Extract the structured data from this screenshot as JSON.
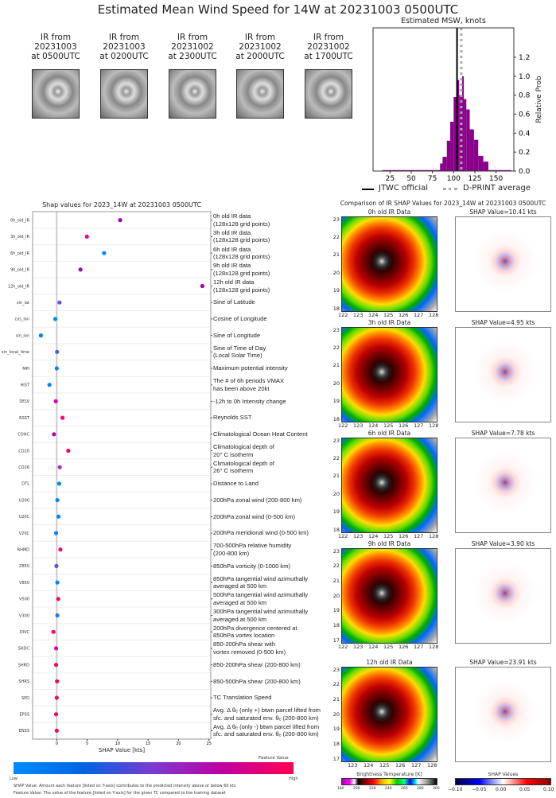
{
  "title": "Estimated Mean Wind Speed for 14W at 20231003 0500UTC",
  "ir_thumbnails": [
    {
      "label": "IR from\n20231003\nat 0500UTC"
    },
    {
      "label": "IR from\n20231003\nat 0200UTC"
    },
    {
      "label": "IR from\n20231002\nat 2300UTC"
    },
    {
      "label": "IR from\n20231002\nat 2000UTC"
    },
    {
      "label": "IR from\n20231002\nat 1700UTC"
    }
  ],
  "chart_data": [
    {
      "type": "bar",
      "title": "Estimated MSW, knots",
      "ylabel": "Relative Prob",
      "xlim": [
        5,
        171
      ],
      "ylim": [
        0,
        1.25
      ],
      "xticks": [
        "25",
        "50",
        "75",
        "100",
        "125",
        "150"
      ],
      "yticks": [
        "0.0",
        "0.2",
        "0.4",
        "0.6",
        "0.8",
        "1.0",
        "1.2"
      ],
      "bar_color": "#8b008b",
      "bins": [
        [
          16,
          84,
          0.01
        ],
        [
          84,
          87,
          0.08
        ],
        [
          87,
          92,
          0.15
        ],
        [
          92,
          96,
          0.32
        ],
        [
          96,
          100,
          0.52
        ],
        [
          100,
          104,
          0.78
        ],
        [
          104,
          106.5,
          0.96
        ],
        [
          106.5,
          110,
          0.8
        ],
        [
          110,
          112,
          1.0
        ],
        [
          112,
          115,
          0.76
        ],
        [
          115,
          119,
          0.65
        ],
        [
          119,
          124,
          0.44
        ],
        [
          124,
          129,
          0.33
        ],
        [
          129,
          135,
          0.16
        ],
        [
          135,
          141,
          0.1
        ],
        [
          141,
          168,
          0.01
        ]
      ],
      "jtwc_official": 104,
      "dprint_average": 109,
      "legend": {
        "jtwc_label": "JTWC official",
        "dprint_label": "D-PRINT average",
        "placement": "bottom"
      }
    },
    {
      "type": "scatter",
      "title": "Shap values for 2023_14W at 20231003 0500UTC",
      "xlabel": "SHAP Value [kts]",
      "xlim": [
        -3.96,
        25.3
      ],
      "xticks": [
        "0",
        "5",
        "10",
        "15",
        "20",
        "25"
      ],
      "points": [
        {
          "code": "0h_old_IR",
          "desc": "0h old IR data\n(128x128 grid points)",
          "shap": 10.41,
          "color": "#a000a8"
        },
        {
          "code": "3h_old_IR",
          "desc": "3h old IR data\n(128x128 grid points)",
          "shap": 4.95,
          "color": "#f000a0"
        },
        {
          "code": "6h_old_IR",
          "desc": "6h old IR data\n(128x128 grid points)",
          "shap": 7.78,
          "color": "#0088ff"
        },
        {
          "code": "9h_old_IR",
          "desc": "9h old IR data\n(128x128 grid points)",
          "shap": 3.9,
          "color": "#9010b0"
        },
        {
          "code": "12h_old_IR",
          "desc": "12h old IR data\n(128x128 grid points)",
          "shap": 23.91,
          "color": "#a000b0"
        },
        {
          "code": "sin_lat",
          "desc": "Sine of Latitude",
          "shap": 0.45,
          "color": "#7050e0"
        },
        {
          "code": "cos_lon",
          "desc": "Cosine of Longitude",
          "shap": -0.25,
          "color": "#0088ff"
        },
        {
          "code": "sin_lon",
          "desc": "Sine of Longitude",
          "shap": -2.6,
          "color": "#0080ff"
        },
        {
          "code": "sin_local_time",
          "desc": "Sine of Time of Day\n(Local Solar Time)",
          "shap": 0.05,
          "color": "#4060e8"
        },
        {
          "code": "MPI",
          "desc": "Maximum potential intensity",
          "shap": 0.0,
          "color": "#0088ff"
        },
        {
          "code": "HIST",
          "desc": "The # of 6h periods VMAX\nhas been above 20kt",
          "shap": -1.2,
          "color": "#0080ff"
        },
        {
          "code": "DELV",
          "desc": "-12h to 0h Intensity change",
          "shap": -0.15,
          "color": "#d800b0"
        },
        {
          "code": "RSST",
          "desc": "Reynolds SST",
          "shap": 0.95,
          "color": "#ff0070"
        },
        {
          "code": "COHC",
          "desc": "Climatological Ocean Heat Content",
          "shap": -0.45,
          "color": "#b000b8"
        },
        {
          "code": "CD20",
          "desc": "Climatological depth of\n20° C isotherm",
          "shap": 1.9,
          "color": "#ff0050"
        },
        {
          "code": "CD26",
          "desc": "Climatological depth of\n26° C isotherm",
          "shap": 0.5,
          "color": "#a030c8"
        },
        {
          "code": "DTL",
          "desc": "Distance to Land",
          "shap": 0.4,
          "color": "#0088ff"
        },
        {
          "code": "U200",
          "desc": "200hPa zonal wind (200-800 km)",
          "shap": 0.1,
          "color": "#0088ff"
        },
        {
          "code": "U20C",
          "desc": "200hPa zonal wind (0-500 km)",
          "shap": 0.3,
          "color": "#0088ff"
        },
        {
          "code": "V20C",
          "desc": "200hPa meridional wind (0-500 km)",
          "shap": -0.1,
          "color": "#0088ff"
        },
        {
          "code": "RHMD",
          "desc": "700-500hPa relative humidity\n(200-800 km)",
          "shap": 0.6,
          "color": "#ff0078"
        },
        {
          "code": "Z850",
          "desc": "850hPa vorticity (0-1000 km)",
          "shap": -0.05,
          "color": "#6050d8"
        },
        {
          "code": "V850",
          "desc": "850hPa tangential wind azimuthally\naveraged at 500 km",
          "shap": 0.1,
          "color": "#0088ff"
        },
        {
          "code": "V500",
          "desc": "500hPa tangential wind azimuthally\naveraged at 500 km",
          "shap": 0.25,
          "color": "#ff0060"
        },
        {
          "code": "V300",
          "desc": "300hPa tangential wind azimuthally\naveraged at 500 km",
          "shap": 0.1,
          "color": "#3070e8"
        },
        {
          "code": "DIVC",
          "desc": "200hPa divergence centered at\n850hPa vortex location",
          "shap": -0.55,
          "color": "#ff0078"
        },
        {
          "code": "SHDC",
          "desc": "850-200hPa shear with\nvortex removed (0-500 km)",
          "shap": -0.1,
          "color": "#d800b0"
        },
        {
          "code": "SHRD",
          "desc": "850-200hPa shear (200-800 km)",
          "shap": -0.1,
          "color": "#ff0068"
        },
        {
          "code": "SHRS",
          "desc": "850-500hPa shear (200-800 km)",
          "shap": 0.05,
          "color": "#ff0060"
        },
        {
          "code": "SPD",
          "desc": "TC Translation Speed",
          "shap": 0.0,
          "color": "#ff0060"
        },
        {
          "code": "EPSS",
          "desc": "Avg. Δ θₑ (only +) btwn parcel lifted from\nsfc. and saturated env. θₑ (200-800 km)",
          "shap": -0.1,
          "color": "#ff0060"
        },
        {
          "code": "ENSS",
          "desc": "Avg. Δ θₑ (only -) btwn parcel lifted from\nsfc. and saturated env. θₑ (200-800 km)",
          "shap": 0.0,
          "color": "#ff0060"
        }
      ]
    }
  ],
  "feature_colorbar": {
    "title": "Feature Value",
    "low": "Low",
    "high": "High",
    "colors": [
      "#008bfb",
      "#0064e0",
      "#7c3ad0",
      "#c000a0",
      "#ff0052"
    ]
  },
  "footnotes": {
    "shap": "SHAP Value: Amount each feature [listed on Y-axis] contributes to the predicted intensity above or below 60 kts",
    "feature": "Feature Value: The value of the feature [listed on Y-axis] for the given TC compared to the training dataset"
  },
  "comparison": {
    "title": "Comparison of IR SHAP Values for 2023_14W at 20231003 0500UTC",
    "rows": [
      {
        "ir_title": "0h old IR Data",
        "shap_title": "SHAP Value=10.41 kts",
        "yticks": [
          "23",
          "22",
          "21",
          "20",
          "19",
          "18"
        ],
        "xticks": [
          "122",
          "123",
          "124",
          "125",
          "126",
          "127",
          "128"
        ]
      },
      {
        "ir_title": "3h old IR Data",
        "shap_title": "SHAP Value=4.95 kts",
        "yticks": [
          "23",
          "22",
          "21",
          "20",
          "19",
          "18"
        ],
        "xticks": [
          "122",
          "123",
          "124",
          "125",
          "126",
          "127",
          "128"
        ]
      },
      {
        "ir_title": "6h old IR Data",
        "shap_title": "SHAP Value=7.78 kts",
        "yticks": [
          "23",
          "22",
          "21",
          "20",
          "19",
          "18"
        ],
        "xticks": [
          "122",
          "123",
          "124",
          "125",
          "126",
          "127",
          "128"
        ]
      },
      {
        "ir_title": "9h old IR Data",
        "shap_title": "SHAP Value=3.90 kts",
        "yticks": [
          "23",
          "22",
          "21",
          "20",
          "19",
          "18",
          "17"
        ],
        "xticks": [
          "122",
          "123",
          "124",
          "125",
          "126",
          "127",
          "128"
        ]
      },
      {
        "ir_title": "12h old IR Data",
        "shap_title": "SHAP Value=23.91 kts",
        "yticks": [
          "23",
          "22",
          "21",
          "20",
          "19",
          "18",
          "17"
        ],
        "xticks": [
          "123",
          "124",
          "125",
          "126",
          "127",
          "128"
        ]
      }
    ],
    "bt_colorbar": {
      "title": "Brightness Temperature [K]",
      "ticks": [
        "180",
        "200",
        "220",
        "240",
        "260",
        "280",
        "300"
      ]
    },
    "shap_colorbar": {
      "title": "SHAP Values",
      "ticks": [
        "−0.10",
        "−0.05",
        "0.00",
        "0.05",
        "0.10"
      ]
    }
  }
}
